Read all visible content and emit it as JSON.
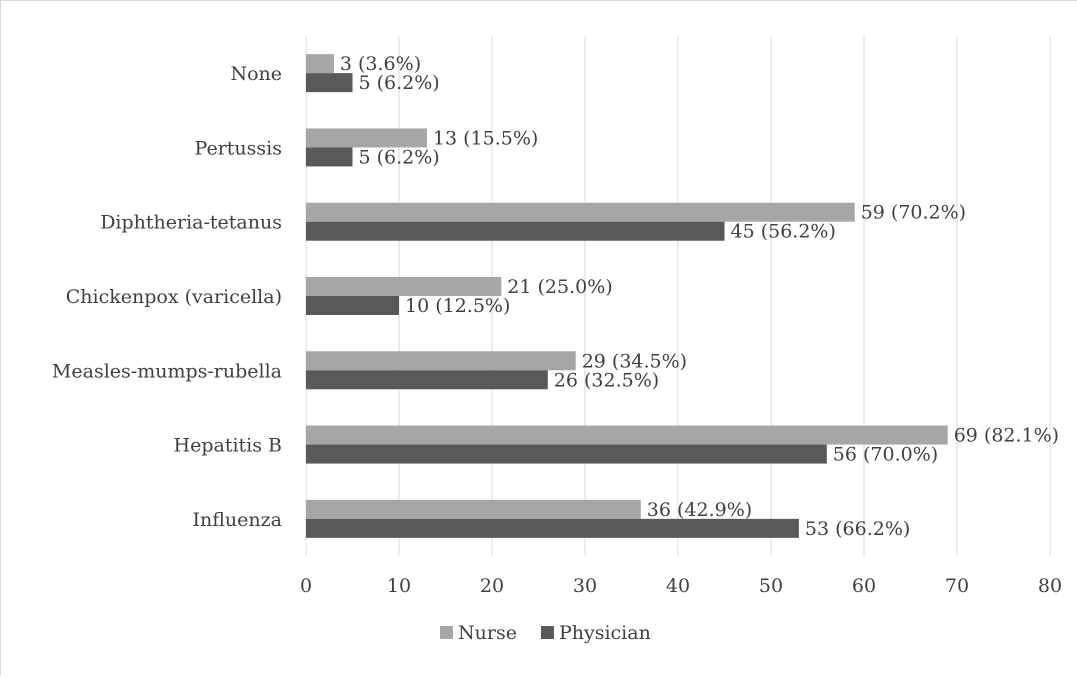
{
  "chart_data": {
    "type": "bar",
    "orientation": "horizontal",
    "categories": [
      "None",
      "Pertussis",
      "Diphtheria-tetanus",
      "Chickenpox (varicella)",
      "Measles-mumps-rubella",
      "Hepatitis B",
      "Influenza"
    ],
    "series": [
      {
        "name": "Nurse",
        "color": "#a6a6a6",
        "values": [
          3,
          13,
          59,
          21,
          29,
          69,
          36
        ],
        "labels": [
          "3 (3.6%)",
          "13 (15.5%)",
          "59 (70.2%)",
          "21 (25.0%)",
          "29 (34.5%)",
          "69 (82.1%)",
          "36 (42.9%)"
        ]
      },
      {
        "name": "Physician",
        "color": "#595959",
        "values": [
          5,
          5,
          45,
          10,
          26,
          56,
          53
        ],
        "labels": [
          "5 (6.2%)",
          "5 (6.2%)",
          "45 (56.2%)",
          "10 (12.5%)",
          "26 (32.5%)",
          "56 (70.0%)",
          "53 (66.2%)"
        ]
      }
    ],
    "xlim": [
      0,
      80
    ],
    "xticks": [
      0,
      10,
      20,
      30,
      40,
      50,
      60,
      70,
      80
    ],
    "grid": true,
    "legend": "bottom",
    "title": "",
    "xlabel": "",
    "ylabel": ""
  }
}
